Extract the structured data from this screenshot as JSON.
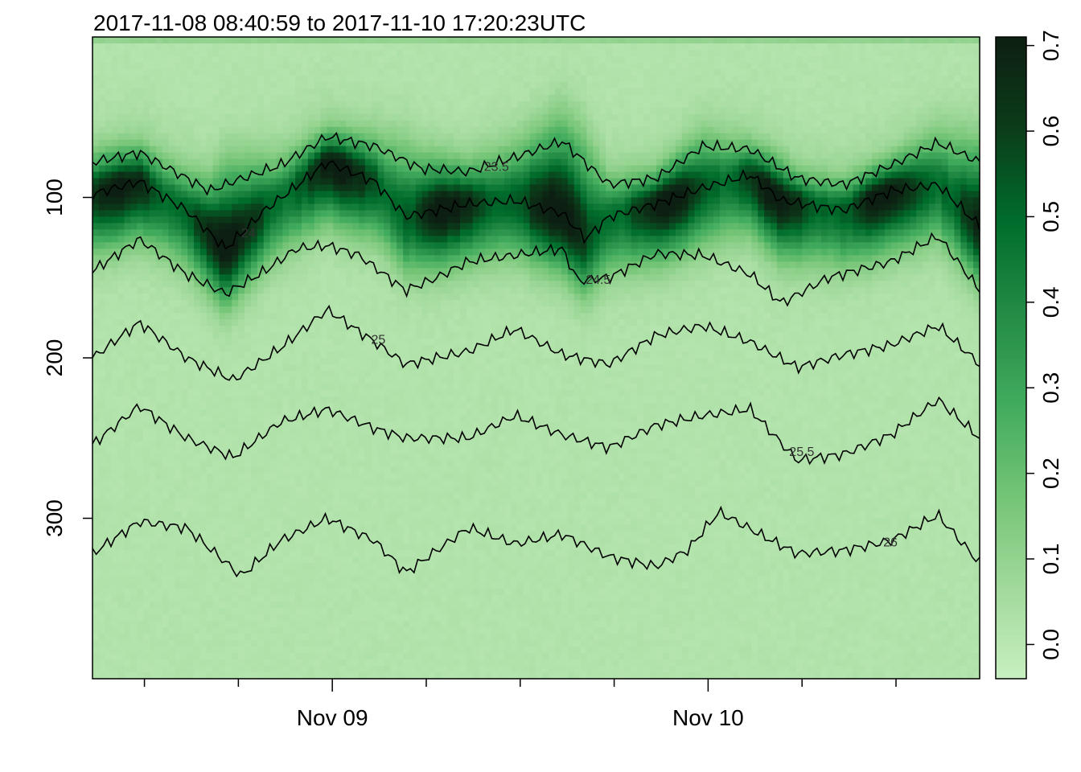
{
  "chart_data": {
    "type": "heatmap",
    "title": "2017-11-08 08:40:59 to 2017-11-10 17:20:23UTC",
    "xlabel": "",
    "ylabel": "",
    "x_tick_labels": [
      "Nov 09",
      "Nov 10"
    ],
    "x_ticks_hours": [
      15.3167,
      39.3167
    ],
    "x_minor_ticks_hours": [
      3.3167,
      9.3167,
      21.3167,
      27.3167,
      33.3167,
      45.3167,
      51.3167
    ],
    "xlim_hours": [
      0,
      56.66
    ],
    "ylim": [
      400,
      0
    ],
    "y_ticks": [
      100,
      200,
      300
    ],
    "y_reversed": true,
    "colorbar": {
      "range": [
        -0.04,
        0.71
      ],
      "ticks": [
        0.0,
        0.1,
        0.2,
        0.3,
        0.4,
        0.5,
        0.6,
        0.7
      ],
      "tick_labels": [
        "0.0",
        "0.1",
        "0.2",
        "0.3",
        "0.4",
        "0.5",
        "0.6",
        "0.7"
      ],
      "colors": [
        "#c7efc0",
        "#a1d99b",
        "#74c476",
        "#41ab5d",
        "#238b45",
        "#006d2c",
        "#0b3d1a",
        "#0d1f12"
      ]
    },
    "heatmap_layer": {
      "description_value": "bright band following depth ~100, weak layer around ~80",
      "background_level": 0.02,
      "band_peak_level": 0.68
    },
    "contours": [
      {
        "label": "23.5",
        "x_hours": [
          0,
          3,
          6,
          7.5,
          9,
          12,
          15,
          18,
          21,
          24,
          27,
          30,
          33,
          36,
          39,
          42,
          45,
          48,
          51,
          54,
          56.66
        ],
        "y": [
          78,
          72,
          88,
          96,
          90,
          80,
          62,
          68,
          82,
          84,
          75,
          65,
          92,
          88,
          68,
          70,
          88,
          92,
          80,
          66,
          78
        ]
      },
      {
        "label": "24",
        "x_hours": [
          0,
          3,
          6,
          8.5,
          11,
          15,
          18,
          20,
          24,
          27,
          30,
          31.5,
          33,
          36,
          39,
          42,
          44,
          48,
          51,
          54,
          56.66
        ],
        "y": [
          98,
          90,
          108,
          132,
          108,
          78,
          90,
          112,
          104,
          102,
          110,
          126,
          112,
          104,
          94,
          86,
          102,
          108,
          96,
          92,
          118
        ]
      },
      {
        "label": "24.5",
        "x_hours": [
          0,
          3,
          6,
          8.5,
          11,
          13,
          15,
          17,
          20,
          22,
          24,
          27,
          30,
          31,
          33,
          36,
          39,
          42,
          44,
          47,
          51,
          54,
          56.66
        ],
        "y": [
          146,
          126,
          148,
          160,
          146,
          132,
          130,
          136,
          158,
          150,
          140,
          136,
          132,
          152,
          150,
          135,
          136,
          148,
          166,
          150,
          140,
          124,
          158
        ]
      },
      {
        "label": "25",
        "x_hours": [
          0,
          3,
          6,
          9,
          12,
          15,
          18,
          20,
          24,
          27,
          30,
          33,
          36,
          39,
          42,
          45,
          48,
          51,
          54,
          56.66
        ],
        "y": [
          200,
          178,
          200,
          214,
          194,
          170,
          190,
          204,
          196,
          182,
          198,
          204,
          186,
          180,
          190,
          206,
          198,
          192,
          180,
          204
        ]
      },
      {
        "label": "25.5",
        "x_hours": [
          0,
          3,
          6,
          9,
          12,
          15,
          18,
          20,
          24,
          27,
          30,
          33,
          36,
          39,
          42,
          45,
          48,
          51,
          54,
          56.66
        ],
        "y": [
          254,
          230,
          250,
          262,
          240,
          232,
          244,
          250,
          250,
          236,
          248,
          256,
          242,
          236,
          232,
          264,
          260,
          248,
          226,
          250
        ]
      },
      {
        "label": "26",
        "x_hours": [
          0,
          3,
          6,
          9.5,
          12,
          15,
          18,
          20,
          24,
          27,
          30,
          33,
          36,
          38,
          40,
          43,
          45,
          48,
          51,
          54,
          56.66
        ],
        "y": [
          322,
          302,
          306,
          336,
          314,
          300,
          314,
          334,
          306,
          316,
          310,
          324,
          330,
          320,
          296,
          312,
          322,
          320,
          314,
          298,
          328
        ]
      }
    ]
  }
}
